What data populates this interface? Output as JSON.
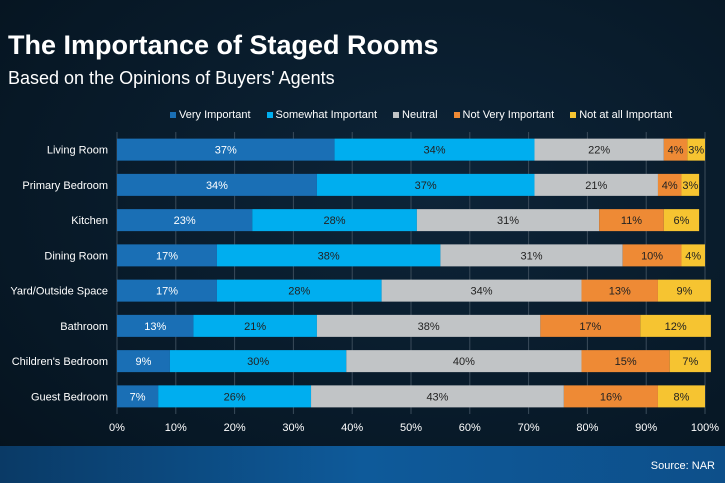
{
  "chart_data": {
    "type": "bar",
    "orientation": "horizontal",
    "stacked": true,
    "title": "The Importance of Staged Rooms",
    "subtitle": "Based on the Opinions of Buyers' Agents",
    "categories": [
      "Living Room",
      "Primary Bedroom",
      "Kitchen",
      "Dining Room",
      "Yard/Outside Space",
      "Bathroom",
      "Children's Bedroom",
      "Guest Bedroom"
    ],
    "series": [
      {
        "name": "Very Important",
        "color": "#1a6fb5",
        "values": [
          37,
          34,
          23,
          17,
          17,
          13,
          9,
          7
        ]
      },
      {
        "name": "Somewhat Important",
        "color": "#00aeef",
        "values": [
          34,
          37,
          28,
          38,
          28,
          21,
          30,
          26
        ]
      },
      {
        "name": "Neutral",
        "color": "#c1c4c6",
        "values": [
          22,
          21,
          31,
          31,
          34,
          38,
          40,
          43
        ]
      },
      {
        "name": "Not Very Important",
        "color": "#ee8a35",
        "values": [
          4,
          4,
          11,
          10,
          13,
          17,
          15,
          16
        ]
      },
      {
        "name": "Not at all Important",
        "color": "#f6c431",
        "values": [
          3,
          3,
          6,
          4,
          9,
          12,
          7,
          8
        ]
      }
    ],
    "xlim": [
      0,
      100
    ],
    "xticks": [
      "0%",
      "10%",
      "20%",
      "30%",
      "40%",
      "50%",
      "60%",
      "70%",
      "80%",
      "90%",
      "100%"
    ],
    "grid": true,
    "legend_position": "top",
    "source": "Source: NAR"
  }
}
